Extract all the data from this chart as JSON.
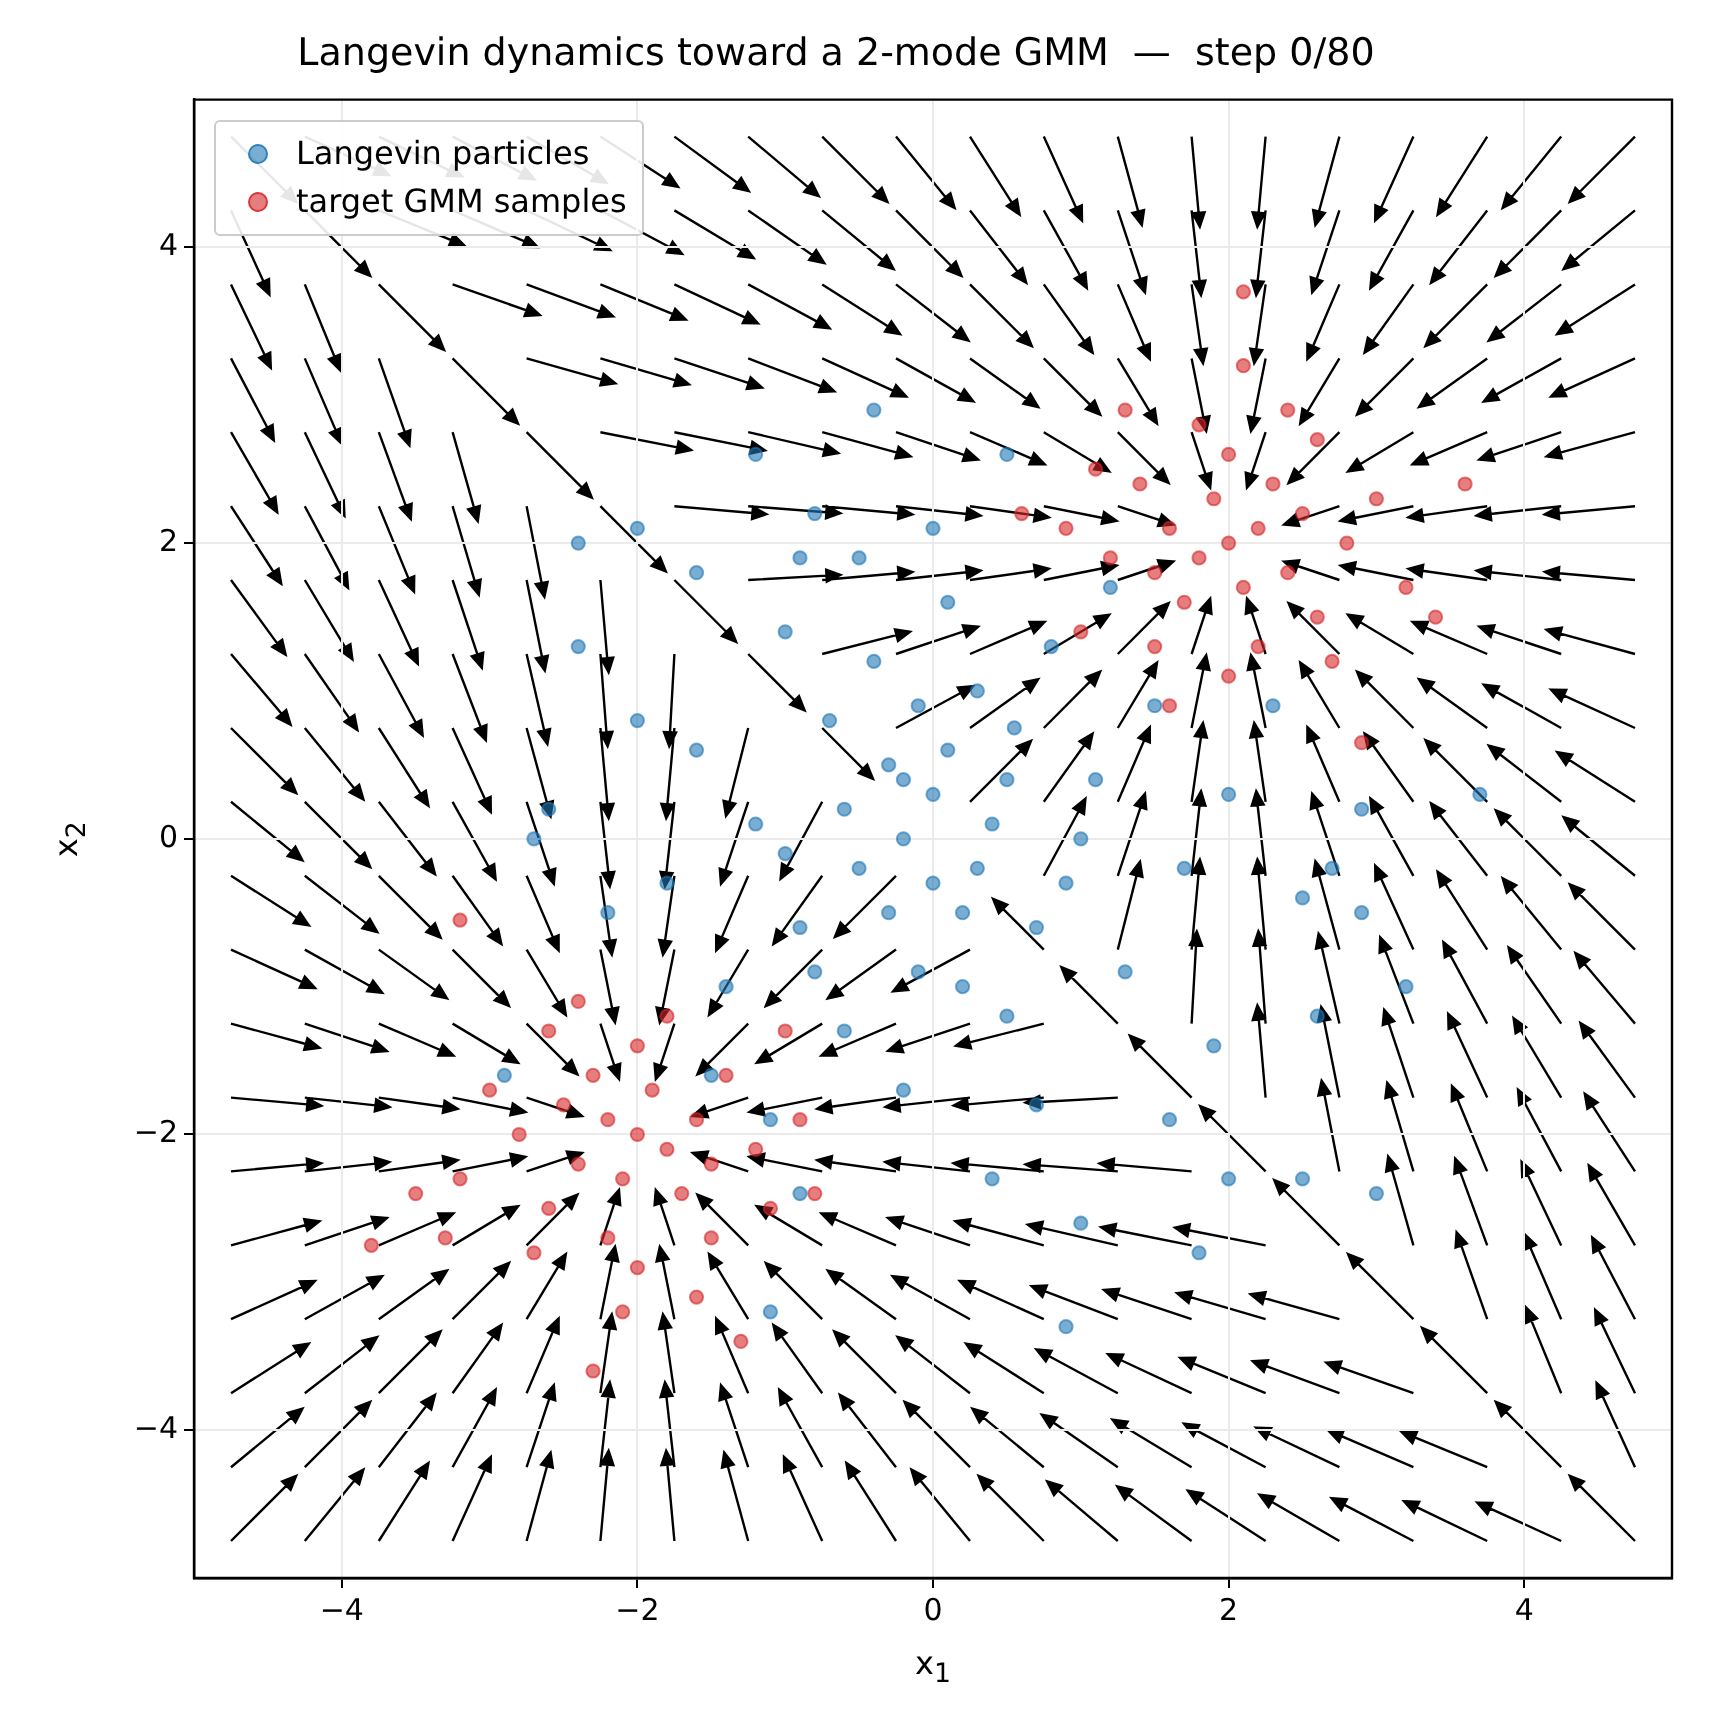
{
  "chart_data": {
    "type": "scatter",
    "title": "Langevin dynamics toward a 2-mode GMM  —  step 0/80",
    "xlabel": "x$_{1}$",
    "ylabel": "x$_{2}$",
    "xlim": [
      -5,
      5
    ],
    "ylim": [
      -5,
      5
    ],
    "xticks": [
      {
        "value": -4,
        "label": "−4"
      },
      {
        "value": -2,
        "label": "−2"
      },
      0,
      2,
      4
    ],
    "yticks": [
      {
        "value": -4,
        "label": "−4"
      },
      {
        "value": -2,
        "label": "−2"
      },
      0,
      2,
      4
    ],
    "grid": true,
    "legend": "top left",
    "marker": "circle",
    "series": [
      {
        "name": "Langevin particles",
        "color": "#1f77b4",
        "x": [
          0,
          -0.3,
          0.4,
          -0.5,
          0.2,
          -0.1,
          0.55,
          -0.7,
          0.9,
          -0.9,
          0.3,
          -0.4,
          1.1,
          -1.2,
          0.5,
          -0.6,
          1.3,
          -1.4,
          0.8,
          -1,
          1.5,
          -1.6,
          0.1,
          -0.2,
          1.7,
          -1.8,
          0.7,
          -1.1,
          1.2,
          -0.5,
          2,
          -2,
          0,
          0.4,
          1.9,
          -1.5,
          2.3,
          -2.2,
          1.6,
          -0.8,
          2.5,
          -2.4,
          2.6,
          -0.9,
          1,
          -1.2,
          -0.4,
          2.9,
          -2.6,
          3.2,
          2.5,
          1.8,
          -1.1,
          0.9,
          -2,
          -2.7,
          -2.9,
          -1.6,
          3.7,
          3,
          2,
          0.2,
          -0.2,
          0.1,
          -0.3,
          0.5,
          -0.6,
          0.3,
          -0.1,
          0.7,
          -0.8,
          1,
          -1,
          0,
          -0.2,
          2.9,
          2.7,
          -2.4,
          0.5,
          -0.9
        ],
        "values": [
          0.3,
          0.5,
          0.1,
          -0.2,
          -0.5,
          -0.9,
          0.75,
          0.8,
          -0.3,
          -0.6,
          1,
          1.2,
          0.4,
          0.1,
          -1.2,
          -1.3,
          -0.9,
          -1,
          1.3,
          1.4,
          0.9,
          0.6,
          1.6,
          -1.7,
          -0.2,
          -0.3,
          -1.8,
          -1.9,
          1.7,
          1.9,
          0.3,
          0.8,
          2.1,
          -2.3,
          -1.4,
          -1.6,
          0.9,
          -0.5,
          -1.9,
          2.2,
          -0.4,
          1.3,
          -1.2,
          -2.4,
          -2.6,
          2.6,
          2.9,
          0.2,
          0.2,
          -1,
          -2.3,
          -2.8,
          -3.2,
          -3.3,
          2.1,
          0,
          -1.6,
          1.8,
          0.3,
          -2.4,
          -2.3,
          -1,
          0,
          0.6,
          -0.5,
          0.4,
          0.2,
          -0.2,
          0.9,
          -0.6,
          -0.9,
          0,
          -0.1,
          -0.3,
          0.4,
          -0.5,
          -0.2,
          2,
          2.6,
          1.9
        ]
      },
      {
        "name": "target GMM samples",
        "color": "#d62728",
        "x": [
          2,
          2.2,
          1.8,
          2.1,
          1.9,
          2.4,
          1.6,
          2.3,
          1.7,
          2.5,
          1.5,
          2,
          2.6,
          1.4,
          2.2,
          1.8,
          2.8,
          1.2,
          2,
          2.4,
          3,
          1.1,
          2.7,
          1.5,
          2.1,
          3.2,
          0.9,
          1.6,
          2.1,
          3.4,
          0.6,
          2.9,
          1,
          2.6,
          1.3,
          3.6,
          -2,
          -2.2,
          -1.8,
          -2.1,
          -1.9,
          -2.4,
          -1.6,
          -2.3,
          -1.7,
          -2.5,
          -1.5,
          -2,
          -2.6,
          -1.4,
          -2.2,
          -1.8,
          -2.8,
          -1.2,
          -2,
          -2.4,
          -3,
          -1.1,
          -2.7,
          -1.5,
          -2.1,
          -3.2,
          -0.9,
          -1.6,
          -2.3,
          -3.3,
          -0.8,
          -3.8,
          -1,
          -2.6,
          -1.3,
          -3.5,
          -3.2
        ],
        "values": [
          2,
          2.1,
          1.9,
          1.7,
          2.3,
          1.8,
          2.1,
          2.4,
          1.6,
          2.2,
          1.8,
          2.6,
          1.5,
          2.4,
          1.3,
          2.8,
          2,
          1.9,
          1.1,
          2.9,
          2.3,
          2.5,
          1.2,
          1.3,
          3.2,
          1.7,
          2.1,
          0.9,
          3.7,
          1.5,
          2.2,
          0.65,
          1.4,
          2.7,
          2.9,
          2.4,
          -2,
          -1.9,
          -2.1,
          -2.3,
          -1.7,
          -2.2,
          -1.9,
          -1.6,
          -2.4,
          -1.8,
          -2.2,
          -1.4,
          -2.5,
          -1.6,
          -2.7,
          -1.2,
          -2,
          -2.1,
          -2.9,
          -1.1,
          -1.7,
          -2.5,
          -2.8,
          -2.7,
          -3.2,
          -2.3,
          -1.9,
          -3.1,
          -3.6,
          -2.7,
          -2.4,
          -2.75,
          -1.3,
          -1.3,
          -3.4,
          -2.4,
          -0.55
        ]
      }
    ]
  }
}
